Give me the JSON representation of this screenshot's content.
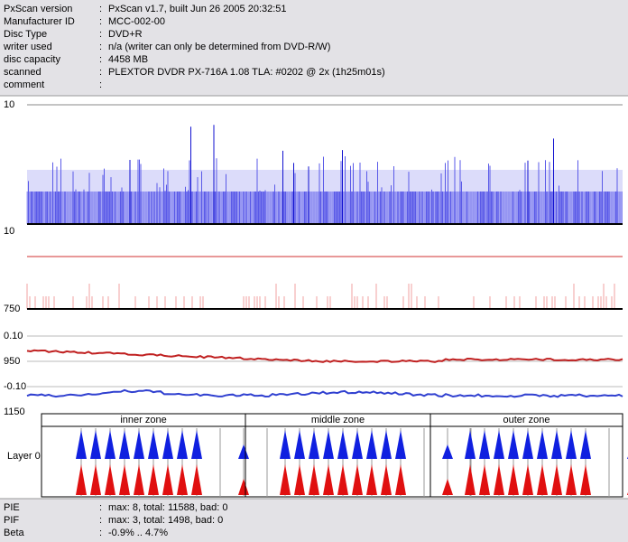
{
  "separator": ":",
  "header": {
    "rows": [
      {
        "label": "PxScan version",
        "value": "PxScan v1.7, built Jun 26 2005 20:32:51"
      },
      {
        "label": "Manufacturer ID",
        "value": "MCC-002-00"
      },
      {
        "label": "Disc Type",
        "value": "DVD+R"
      },
      {
        "label": "writer used",
        "value": "n/a (writer can only be determined from DVD-R/W)"
      },
      {
        "label": "disc capacity",
        "value": "4458 MB"
      },
      {
        "label": "scanned",
        "value": "PLEXTOR DVDR PX-716A 1.08 TLA: #0202 @ 2x (1h25m01s)"
      },
      {
        "label": "comment"
      }
    ]
  },
  "graphs": {
    "pie_axis_top": "10",
    "pif_axis_top": "10",
    "jitter_axis": [
      "750",
      "0.10",
      "950",
      "-0.10",
      "1150"
    ]
  },
  "zones": [
    "inner zone",
    "middle zone",
    "outer zone"
  ],
  "layer": "Layer 0",
  "summary": [
    {
      "label": "PIE",
      "value": "max: 8, total: 11588, bad: 0"
    },
    {
      "label": "PIF",
      "value": "max: 3, total: 1498, bad: 0"
    },
    {
      "label": "Beta",
      "value": "-0.9% .. 4.7%"
    }
  ]
}
